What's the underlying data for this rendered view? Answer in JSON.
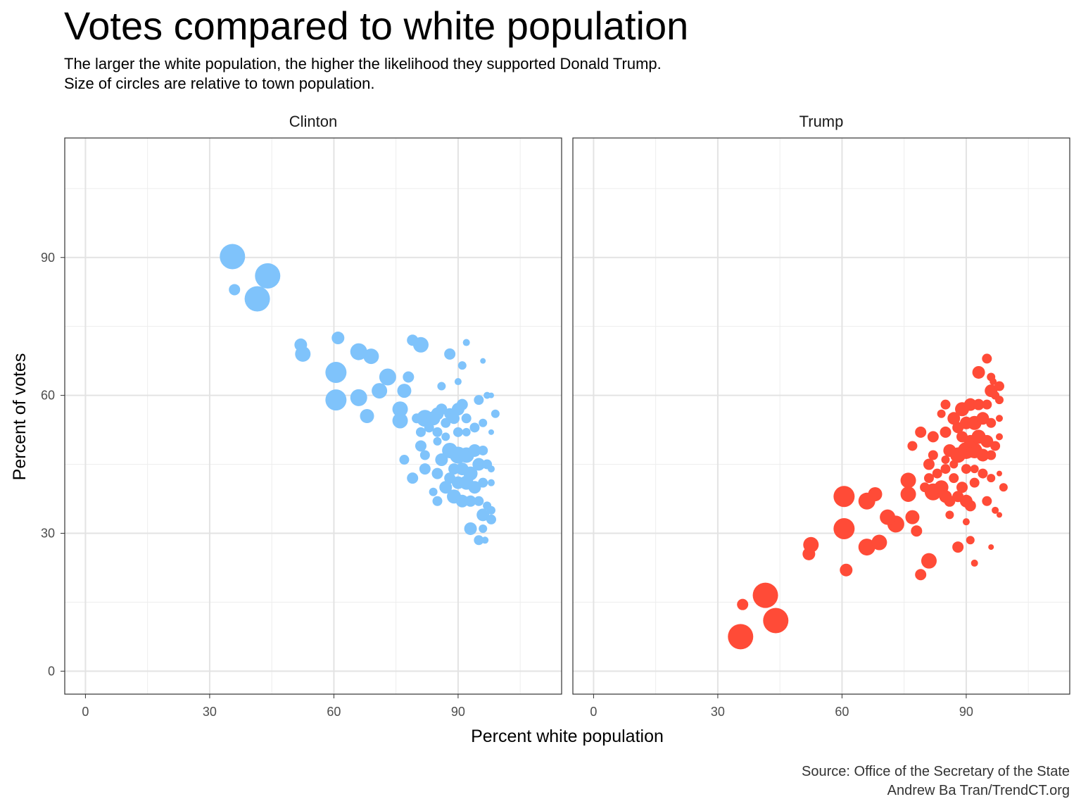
{
  "title": "Votes compared to white population",
  "subtitle_line1": "The larger the white population, the higher the likelihood they supported Donald Trump.",
  "subtitle_line2": "Size of circles are relative to town population.",
  "caption_line1": "Source: Office of the Secretary of the State",
  "caption_line2": "Andrew Ba Tran/TrendCT.org",
  "chart_data": {
    "type": "scatter",
    "xlabel": "Percent white population",
    "ylabel": "Percent of votes",
    "xlim": [
      -5,
      115
    ],
    "ylim": [
      -5,
      116
    ],
    "x_ticks": [
      "0",
      "30",
      "60",
      "90"
    ],
    "y_ticks": [
      "0",
      "30",
      "60",
      "90"
    ],
    "grid": true,
    "point_size_encodes": "town population",
    "colors": {
      "Clinton": "#7fc3fb",
      "Trump": "#ff4b37"
    },
    "series": [
      {
        "name": "Clinton",
        "points": [
          [
            35.5,
            90.2,
            36
          ],
          [
            44,
            86,
            36
          ],
          [
            41.5,
            81,
            36
          ],
          [
            36,
            83,
            16
          ],
          [
            52,
            71,
            18
          ],
          [
            52.5,
            69,
            22
          ],
          [
            61,
            72.5,
            18
          ],
          [
            60.5,
            65,
            30
          ],
          [
            66,
            69.5,
            24
          ],
          [
            69,
            68.5,
            22
          ],
          [
            60.5,
            59,
            30
          ],
          [
            66,
            59.5,
            24
          ],
          [
            73,
            64,
            24
          ],
          [
            71,
            61,
            22
          ],
          [
            68,
            55.5,
            20
          ],
          [
            76,
            57,
            22
          ],
          [
            76,
            54.5,
            22
          ],
          [
            77,
            61,
            20
          ],
          [
            78,
            64,
            16
          ],
          [
            79,
            72,
            16
          ],
          [
            81,
            71,
            22
          ],
          [
            86,
            62,
            12
          ],
          [
            88,
            69,
            16
          ],
          [
            90,
            63,
            10
          ],
          [
            91,
            66.5,
            12
          ],
          [
            92,
            71.5,
            10
          ],
          [
            96,
            67.5,
            8
          ],
          [
            82,
            55,
            24
          ],
          [
            80,
            55,
            14
          ],
          [
            81,
            52,
            14
          ],
          [
            84,
            55,
            20
          ],
          [
            85,
            56,
            18
          ],
          [
            86,
            57,
            16
          ],
          [
            88,
            56,
            16
          ],
          [
            90,
            57,
            18
          ],
          [
            91,
            58,
            16
          ],
          [
            87,
            54,
            14
          ],
          [
            89,
            55,
            16
          ],
          [
            92,
            55,
            14
          ],
          [
            95,
            59,
            14
          ],
          [
            97,
            60,
            10
          ],
          [
            98,
            60,
            8
          ],
          [
            99,
            56,
            12
          ],
          [
            83,
            53,
            14
          ],
          [
            85,
            52,
            14
          ],
          [
            87,
            51,
            12
          ],
          [
            90,
            52,
            14
          ],
          [
            92,
            52,
            12
          ],
          [
            94,
            53,
            14
          ],
          [
            96,
            54,
            12
          ],
          [
            98,
            52,
            8
          ],
          [
            81,
            49,
            16
          ],
          [
            82,
            47,
            14
          ],
          [
            85,
            50,
            12
          ],
          [
            86,
            46,
            18
          ],
          [
            88,
            48,
            22
          ],
          [
            90,
            47,
            24
          ],
          [
            92,
            47,
            22
          ],
          [
            94,
            48,
            18
          ],
          [
            96,
            48,
            14
          ],
          [
            89,
            44,
            16
          ],
          [
            91,
            44,
            18
          ],
          [
            93,
            43,
            20
          ],
          [
            95,
            45,
            18
          ],
          [
            97,
            45,
            14
          ],
          [
            98,
            44,
            10
          ],
          [
            77,
            46,
            14
          ],
          [
            82,
            44,
            16
          ],
          [
            85,
            43,
            16
          ],
          [
            88,
            42,
            16
          ],
          [
            90,
            41,
            18
          ],
          [
            92,
            41,
            20
          ],
          [
            94,
            40,
            18
          ],
          [
            96,
            41,
            14
          ],
          [
            98,
            41,
            10
          ],
          [
            79,
            42,
            16
          ],
          [
            84,
            39,
            12
          ],
          [
            85,
            37,
            14
          ],
          [
            87,
            40,
            18
          ],
          [
            89,
            38,
            20
          ],
          [
            91,
            37,
            18
          ],
          [
            93,
            37,
            16
          ],
          [
            95,
            37,
            14
          ],
          [
            97,
            36,
            12
          ],
          [
            98,
            35,
            12
          ],
          [
            96,
            34,
            18
          ],
          [
            98,
            33,
            14
          ],
          [
            93,
            31,
            18
          ],
          [
            96,
            31,
            12
          ],
          [
            95,
            28.5,
            14
          ],
          [
            96.5,
            28.5,
            10
          ]
        ]
      },
      {
        "name": "Trump",
        "points": [
          [
            35.5,
            7.5,
            36
          ],
          [
            44,
            11,
            36
          ],
          [
            41.5,
            16.5,
            36
          ],
          [
            36,
            14.5,
            16
          ],
          [
            52,
            25.5,
            18
          ],
          [
            52.5,
            27.5,
            22
          ],
          [
            61,
            22,
            18
          ],
          [
            60.5,
            31,
            30
          ],
          [
            66,
            27,
            24
          ],
          [
            69,
            28,
            22
          ],
          [
            60.5,
            38,
            30
          ],
          [
            66,
            37,
            24
          ],
          [
            73,
            32,
            24
          ],
          [
            71,
            33.5,
            22
          ],
          [
            68,
            38.5,
            20
          ],
          [
            76,
            38.5,
            22
          ],
          [
            76,
            41.5,
            22
          ],
          [
            77,
            33.5,
            20
          ],
          [
            78,
            30.5,
            16
          ],
          [
            79,
            21,
            16
          ],
          [
            81,
            24,
            22
          ],
          [
            86,
            34,
            12
          ],
          [
            88,
            27,
            16
          ],
          [
            90,
            32.5,
            10
          ],
          [
            91,
            28.5,
            12
          ],
          [
            92,
            23.5,
            10
          ],
          [
            96,
            27,
            8
          ],
          [
            82,
            39,
            24
          ],
          [
            80,
            40,
            14
          ],
          [
            81,
            42,
            14
          ],
          [
            84,
            40,
            20
          ],
          [
            85,
            38,
            18
          ],
          [
            86,
            37,
            16
          ],
          [
            88,
            38,
            16
          ],
          [
            90,
            37,
            18
          ],
          [
            91,
            36,
            16
          ],
          [
            87,
            42,
            14
          ],
          [
            89,
            40,
            16
          ],
          [
            92,
            41,
            14
          ],
          [
            95,
            37,
            14
          ],
          [
            97,
            35,
            10
          ],
          [
            98,
            34,
            8
          ],
          [
            99,
            40,
            12
          ],
          [
            83,
            43,
            14
          ],
          [
            85,
            44,
            14
          ],
          [
            87,
            45,
            12
          ],
          [
            90,
            44,
            14
          ],
          [
            92,
            44,
            12
          ],
          [
            94,
            43,
            14
          ],
          [
            96,
            42,
            12
          ],
          [
            98,
            43,
            8
          ],
          [
            81,
            45,
            16
          ],
          [
            82,
            47,
            14
          ],
          [
            85,
            46,
            12
          ],
          [
            86,
            48,
            18
          ],
          [
            88,
            47,
            22
          ],
          [
            90,
            48,
            24
          ],
          [
            92,
            48,
            22
          ],
          [
            94,
            47,
            18
          ],
          [
            96,
            47,
            14
          ],
          [
            89,
            51,
            16
          ],
          [
            91,
            50,
            18
          ],
          [
            93,
            51,
            20
          ],
          [
            95,
            50,
            18
          ],
          [
            97,
            49,
            14
          ],
          [
            98,
            51,
            10
          ],
          [
            77,
            49,
            14
          ],
          [
            82,
            51,
            16
          ],
          [
            85,
            52,
            16
          ],
          [
            88,
            53,
            16
          ],
          [
            90,
            54,
            18
          ],
          [
            92,
            54,
            20
          ],
          [
            94,
            55,
            18
          ],
          [
            96,
            54,
            14
          ],
          [
            98,
            55,
            10
          ],
          [
            79,
            52,
            16
          ],
          [
            84,
            56,
            12
          ],
          [
            85,
            58,
            14
          ],
          [
            87,
            55,
            18
          ],
          [
            89,
            57,
            20
          ],
          [
            91,
            58,
            18
          ],
          [
            93,
            58,
            16
          ],
          [
            95,
            58,
            14
          ],
          [
            97,
            60,
            12
          ],
          [
            98,
            59,
            12
          ],
          [
            96,
            61,
            18
          ],
          [
            98,
            62,
            14
          ],
          [
            93,
            65,
            18
          ],
          [
            96,
            64,
            12
          ],
          [
            95,
            68,
            14
          ],
          [
            96.5,
            63,
            10
          ]
        ]
      }
    ]
  }
}
